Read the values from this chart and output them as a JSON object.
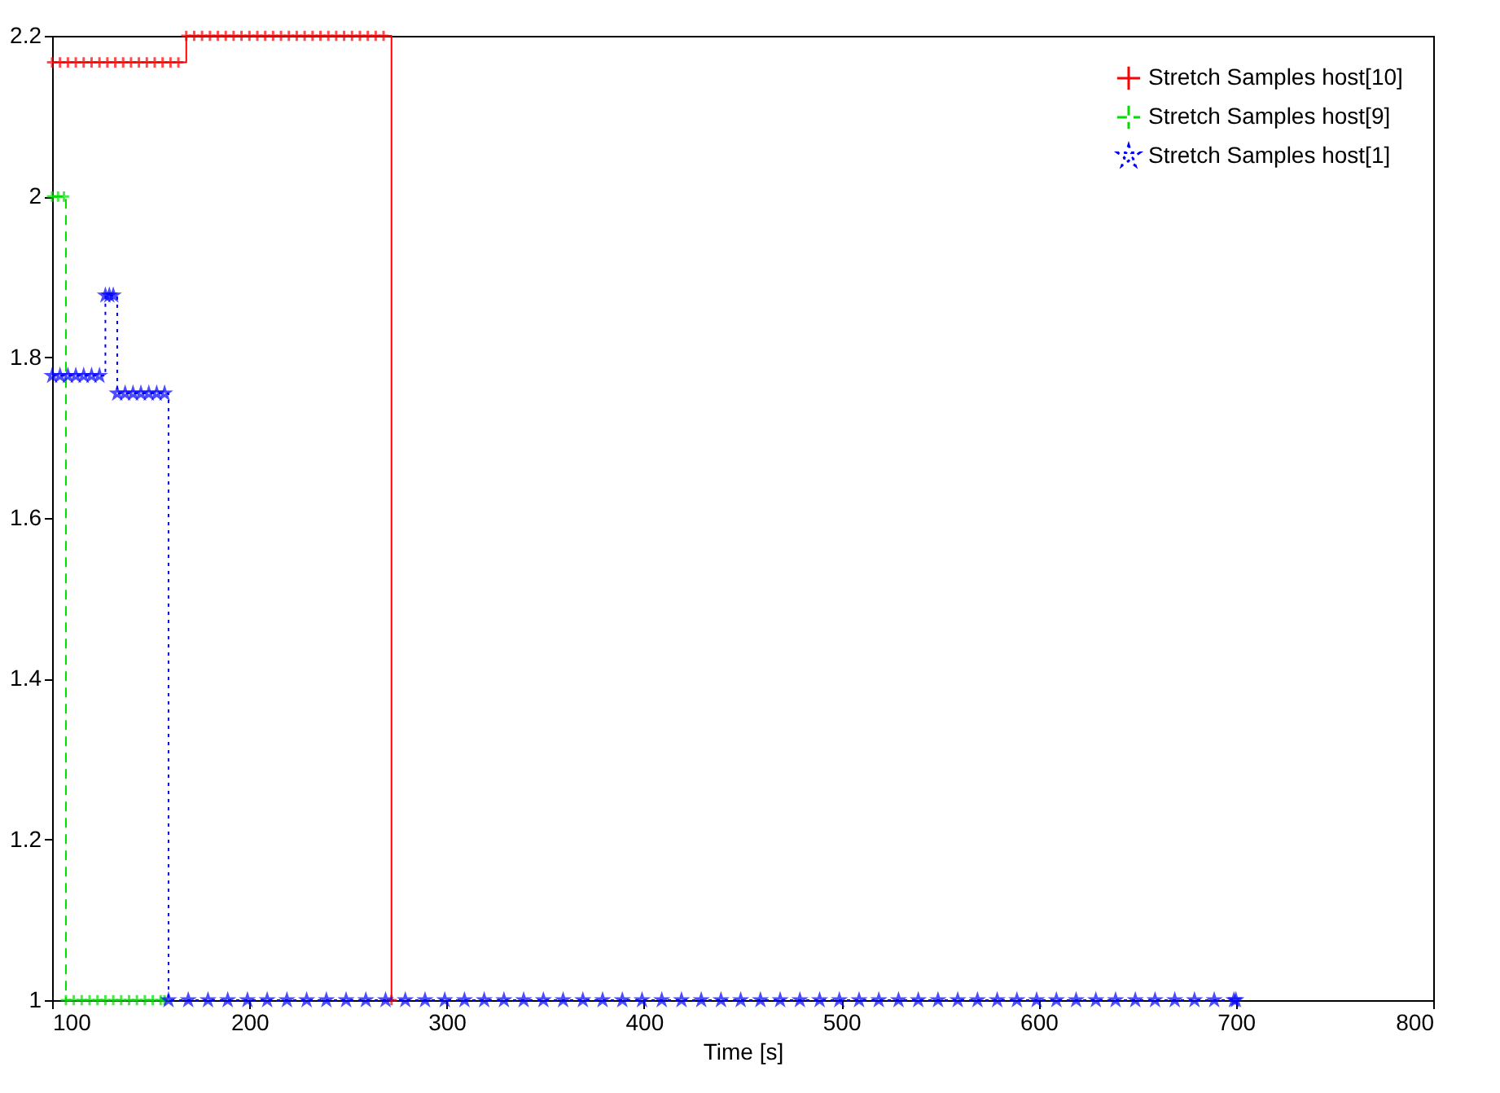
{
  "chart_data": {
    "type": "step",
    "xlabel": "Time [s]",
    "xlim": [
      100,
      800
    ],
    "xticks": [
      100,
      200,
      300,
      400,
      500,
      600,
      700,
      800
    ],
    "ylim": [
      1,
      2.2
    ],
    "yticks": [
      1,
      1.2,
      1.4,
      1.6,
      1.8,
      2,
      2.2
    ],
    "grid": false,
    "legend": "top right",
    "series": [
      {
        "name": "Stretch Samples host[10]",
        "color": "#ff0000",
        "marker": "cross",
        "line_style": "solid",
        "x": [
          100,
          104,
          108,
          112,
          116,
          120,
          124,
          128,
          132,
          136,
          140,
          144,
          148,
          152,
          156,
          160,
          164,
          168,
          172,
          176,
          180,
          184,
          188,
          192,
          196,
          200,
          204,
          208,
          212,
          216,
          220,
          224,
          228,
          232,
          236,
          240,
          244,
          248,
          252,
          256,
          260,
          264,
          268,
          272
        ],
        "values": [
          2.167,
          2.167,
          2.167,
          2.167,
          2.167,
          2.167,
          2.167,
          2.167,
          2.167,
          2.167,
          2.167,
          2.167,
          2.167,
          2.167,
          2.167,
          2.167,
          2.167,
          2.2,
          2.2,
          2.2,
          2.2,
          2.2,
          2.2,
          2.2,
          2.2,
          2.2,
          2.2,
          2.2,
          2.2,
          2.2,
          2.2,
          2.2,
          2.2,
          2.2,
          2.2,
          2.2,
          2.2,
          2.2,
          2.2,
          2.2,
          2.2,
          2.2,
          2.2,
          1
        ]
      },
      {
        "name": "Stretch Samples host[9]",
        "color": "#00dd00",
        "marker": "cross",
        "line_style": "dashed",
        "x": [
          100,
          103,
          106,
          107,
          111,
          115,
          119,
          123,
          127,
          131,
          135,
          139,
          143,
          147,
          151,
          155,
          157
        ],
        "values": [
          2,
          2,
          2,
          1,
          1,
          1,
          1,
          1,
          1,
          1,
          1,
          1,
          1,
          1,
          1,
          1,
          1
        ]
      },
      {
        "name": "Stretch Samples host[1]",
        "color": "#0000ff",
        "marker": "star",
        "line_style": "dotted",
        "x": [
          100,
          104,
          108,
          112,
          116,
          120,
          124,
          127,
          129,
          131,
          133,
          137,
          141,
          145,
          149,
          153,
          157,
          159,
          169,
          179,
          189,
          199,
          209,
          219,
          229,
          239,
          249,
          259,
          269,
          279,
          289,
          299,
          309,
          319,
          329,
          339,
          349,
          359,
          369,
          379,
          389,
          399,
          409,
          419,
          429,
          439,
          449,
          459,
          469,
          479,
          489,
          499,
          509,
          519,
          529,
          539,
          549,
          559,
          569,
          579,
          589,
          599,
          609,
          619,
          629,
          639,
          649,
          659,
          669,
          679,
          689,
          699,
          700
        ],
        "values": [
          1.777,
          1.777,
          1.777,
          1.777,
          1.777,
          1.777,
          1.777,
          1.877,
          1.877,
          1.877,
          1.755,
          1.755,
          1.755,
          1.755,
          1.755,
          1.755,
          1.755,
          1,
          1,
          1,
          1,
          1,
          1,
          1,
          1,
          1,
          1,
          1,
          1,
          1,
          1,
          1,
          1,
          1,
          1,
          1,
          1,
          1,
          1,
          1,
          1,
          1,
          1,
          1,
          1,
          1,
          1,
          1,
          1,
          1,
          1,
          1,
          1,
          1,
          1,
          1,
          1,
          1,
          1,
          1,
          1,
          1,
          1,
          1,
          1,
          1,
          1,
          1,
          1,
          1,
          1,
          1,
          1
        ]
      }
    ]
  }
}
